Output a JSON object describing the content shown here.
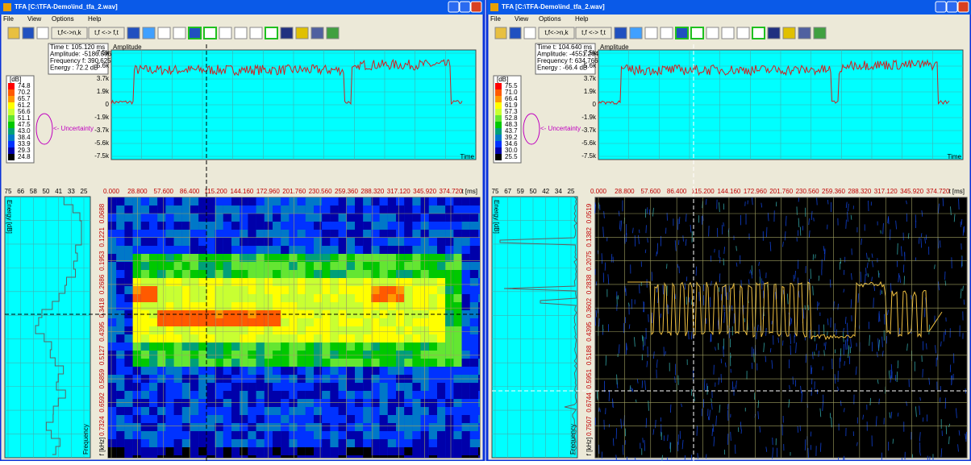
{
  "windows": [
    {
      "title": "TFA [C:\\TFA-Demo\\ind_tfa_2.wav]",
      "menu": [
        "File",
        "View",
        "Options",
        "Help"
      ],
      "toolbar": [
        "t,f<->n,k",
        "t,f <-> f,t"
      ],
      "info": [
        "Time t: 105.120 ms",
        "Amplitude: -5186.5964",
        "Frequency f: 390.625 Hz",
        "Energy : 72.2 dB"
      ],
      "legend": {
        "unit": "[dB]",
        "levels": [
          "74.8",
          "70.2",
          "65.7",
          "61.2",
          "56.6",
          "51.1",
          "47.5",
          "43.0",
          "38.4",
          "33.9",
          "29.3",
          "24.8"
        ]
      },
      "uncertainty": "<- Uncertainty",
      "amplitude": {
        "label": "Amplitude",
        "ticks": [
          "7.5k",
          "5.6k",
          "3.7k",
          "1.9k",
          "0",
          "-1.9k",
          "-3.7k",
          "-5.6k",
          "-7.5k"
        ],
        "axis": "Time"
      },
      "energy": {
        "label": "Energy [dB]",
        "ticks": [
          "75",
          "66",
          "58",
          "50",
          "41",
          "33",
          "25"
        ],
        "axis": "Frequency"
      },
      "spectrogram": {
        "time_ticks": [
          "0.000",
          "28.800",
          "57.600",
          "86.400",
          "115.200",
          "144.160",
          "172.960",
          "201.760",
          "230.560",
          "259.360",
          "288.320",
          "317.120",
          "345.920",
          "374.720"
        ],
        "time_unit": "t [ms]",
        "freq_ticks": [
          "0.0688",
          "0.1221",
          "0.1953",
          "0.2686",
          "0.3418",
          "0.4395",
          "0.5127",
          "0.5859",
          "0.6592",
          "0.7324"
        ],
        "freq_unit": "f [kHz]"
      }
    },
    {
      "title": "TFA [C:\\TFA-Demo\\ind_tfa_2.wav]",
      "menu": [
        "File",
        "View",
        "Options",
        "Help"
      ],
      "toolbar": [
        "t,f<->n,k",
        "t,f <-> f,t"
      ],
      "info": [
        "Time t: 104.640 ms",
        "Amplitude: -4551.2642",
        "Frequency f: 634.766 Hz",
        "Energy : -66.4 dB"
      ],
      "legend": {
        "unit": "[dB]",
        "levels": [
          "75.5",
          "71.0",
          "66.4",
          "61.9",
          "57.3",
          "52.8",
          "48.3",
          "43.7",
          "39.2",
          "34.6",
          "30.0",
          "25.5"
        ]
      },
      "uncertainty": "<- Uncertainty",
      "amplitude": {
        "label": "Amplitude",
        "ticks": [
          "7.5k",
          "5.6k",
          "3.7k",
          "1.9k",
          "0",
          "-1.9k",
          "-3.7k",
          "-5.6k",
          "-7.5k"
        ],
        "axis": "Time"
      },
      "energy": {
        "label": "Energy [dB]",
        "ticks": [
          "75",
          "67",
          "59",
          "50",
          "42",
          "34",
          "25"
        ],
        "axis": "Frequency"
      },
      "spectrogram": {
        "time_ticks": [
          "0.000",
          "28.800",
          "57.600",
          "86.400",
          "115.200",
          "144.160",
          "172.960",
          "201.760",
          "230.560",
          "259.360",
          "288.320",
          "317.120",
          "345.920",
          "374.720"
        ],
        "time_unit": "t [ms]",
        "freq_ticks": [
          "0.0519",
          "0.1382",
          "0.2075",
          "0.2838",
          "0.3602",
          "0.4395",
          "0.5188",
          "0.5951",
          "0.6744",
          "0.7507"
        ],
        "freq_unit": "f [kHz]"
      }
    }
  ]
}
